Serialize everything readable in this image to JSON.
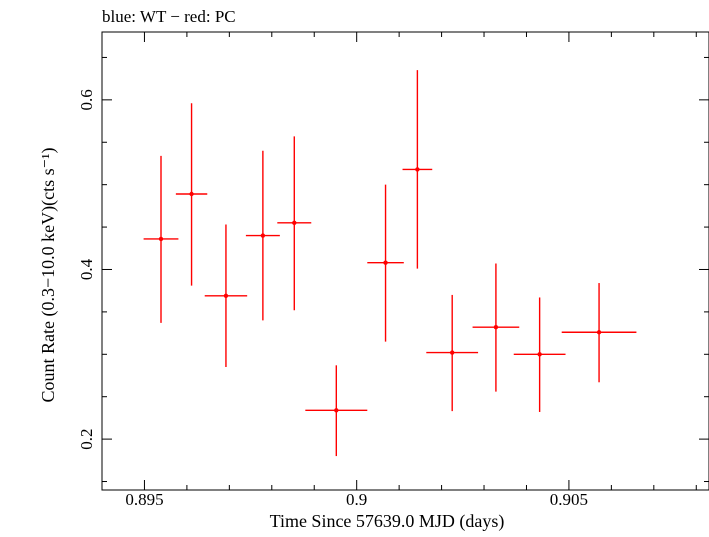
{
  "chart_data": {
    "type": "scatter",
    "title": "blue: WT − red: PC",
    "xlabel": "Time Since 57639.0 MJD (days)",
    "ylabel": "Count Rate (0.3−10.0 keV)(cts s⁻¹)",
    "xlim": [
      0.894,
      0.9083
    ],
    "ylim": [
      0.14,
      0.68
    ],
    "xticks": [
      0.895,
      0.9,
      0.905
    ],
    "xtick_labels": [
      "0.895",
      "0.9",
      "0.905"
    ],
    "yticks": [
      0.2,
      0.4,
      0.6
    ],
    "ytick_labels": [
      "0.2",
      "0.4",
      "0.6"
    ],
    "grid": false,
    "series": [
      {
        "name": "PC",
        "color": "#ff0000",
        "points": [
          {
            "x": 0.89539,
            "y": 0.436,
            "xerr": 0.00041,
            "yerr_low": 0.099,
            "yerr_high": 0.098
          },
          {
            "x": 0.89611,
            "y": 0.489,
            "xerr": 0.00037,
            "yerr_low": 0.108,
            "yerr_high": 0.107
          },
          {
            "x": 0.89692,
            "y": 0.369,
            "xerr": 0.0005,
            "yerr_low": 0.084,
            "yerr_high": 0.084
          },
          {
            "x": 0.89779,
            "y": 0.44,
            "xerr": 0.0004,
            "yerr_low": 0.1,
            "yerr_high": 0.1
          },
          {
            "x": 0.89853,
            "y": 0.455,
            "xerr": 0.0004,
            "yerr_low": 0.103,
            "yerr_high": 0.102
          },
          {
            "x": 0.89952,
            "y": 0.234,
            "xerr": 0.00073,
            "yerr_low": 0.054,
            "yerr_high": 0.053
          },
          {
            "x": 0.90068,
            "y": 0.408,
            "xerr": 0.00043,
            "yerr_low": 0.093,
            "yerr_high": 0.092
          },
          {
            "x": 0.90143,
            "y": 0.518,
            "xerr": 0.00035,
            "yerr_low": 0.117,
            "yerr_high": 0.117
          },
          {
            "x": 0.90225,
            "y": 0.302,
            "xerr": 0.00061,
            "yerr_low": 0.069,
            "yerr_high": 0.068
          },
          {
            "x": 0.90328,
            "y": 0.332,
            "xerr": 0.00055,
            "yerr_low": 0.076,
            "yerr_high": 0.075
          },
          {
            "x": 0.90431,
            "y": 0.3,
            "xerr": 0.00061,
            "yerr_low": 0.068,
            "yerr_high": 0.067
          },
          {
            "x": 0.90571,
            "y": 0.326,
            "xerr": 0.00088,
            "yerr_low": 0.059,
            "yerr_high": 0.058
          }
        ]
      }
    ]
  }
}
